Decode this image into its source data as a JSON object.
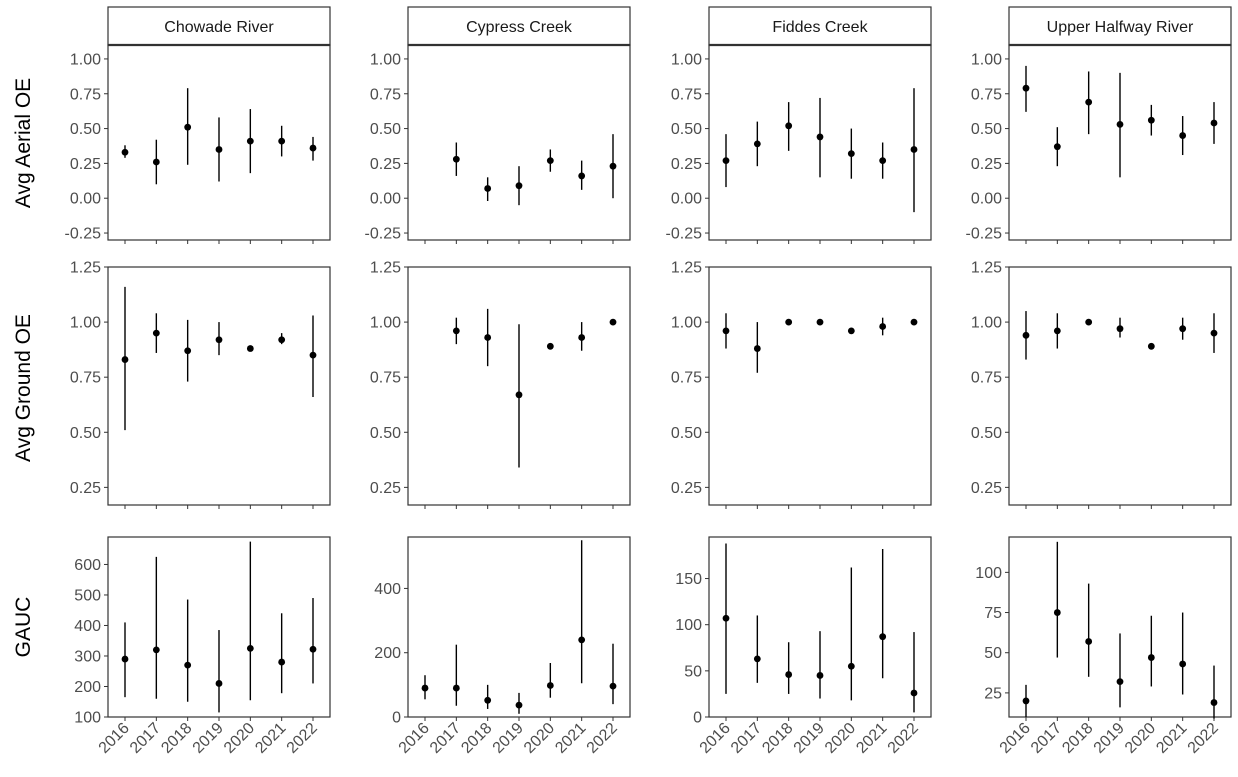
{
  "chart_data": {
    "type": "scatter",
    "facets": [
      "Chowade River",
      "Cypress Creek",
      "Fiddes Creek",
      "Upper Halfway River"
    ],
    "x": [
      "2016",
      "2017",
      "2018",
      "2019",
      "2020",
      "2021",
      "2022"
    ],
    "rows": [
      {
        "label": "Avg Aerial OE",
        "ylim": [
          -0.3,
          1.1
        ],
        "yticks": [
          -0.25,
          0.0,
          0.25,
          0.5,
          0.75,
          1.0
        ],
        "ytick_labels": [
          "-0.25",
          "0.00",
          "0.25",
          "0.50",
          "0.75",
          "1.00"
        ],
        "panels": [
          {
            "facet": "Chowade River",
            "mean": [
              0.33,
              0.26,
              0.51,
              0.35,
              0.41,
              0.41,
              0.36
            ],
            "lower": [
              0.29,
              0.1,
              0.24,
              0.12,
              0.18,
              0.3,
              0.27
            ],
            "upper": [
              0.38,
              0.42,
              0.79,
              0.58,
              0.64,
              0.52,
              0.44
            ]
          },
          {
            "facet": "Cypress Creek",
            "mean": [
              null,
              0.28,
              0.07,
              0.09,
              0.27,
              0.16,
              0.23
            ],
            "lower": [
              null,
              0.16,
              -0.02,
              -0.05,
              0.19,
              0.06,
              0.0
            ],
            "upper": [
              null,
              0.4,
              0.15,
              0.23,
              0.35,
              0.27,
              0.46
            ]
          },
          {
            "facet": "Fiddes Creek",
            "mean": [
              0.27,
              0.39,
              0.52,
              0.44,
              0.32,
              0.27,
              0.35
            ],
            "lower": [
              0.08,
              0.23,
              0.34,
              0.15,
              0.14,
              0.14,
              -0.1
            ],
            "upper": [
              0.46,
              0.55,
              0.69,
              0.72,
              0.5,
              0.4,
              0.79
            ]
          },
          {
            "facet": "Upper Halfway River",
            "mean": [
              0.79,
              0.37,
              0.69,
              0.53,
              0.56,
              0.45,
              0.54
            ],
            "lower": [
              0.62,
              0.23,
              0.46,
              0.15,
              0.45,
              0.31,
              0.39
            ],
            "upper": [
              0.95,
              0.51,
              0.91,
              0.9,
              0.67,
              0.59,
              0.69
            ]
          }
        ]
      },
      {
        "label": "Avg Ground OE",
        "ylim": [
          0.17,
          1.25
        ],
        "yticks": [
          0.25,
          0.5,
          0.75,
          1.0,
          1.25
        ],
        "ytick_labels": [
          "0.25",
          "0.50",
          "0.75",
          "1.00",
          "1.25"
        ],
        "panels": [
          {
            "facet": "Chowade River",
            "mean": [
              0.83,
              0.95,
              0.87,
              0.92,
              0.88,
              0.92,
              0.85
            ],
            "lower": [
              0.51,
              0.86,
              0.73,
              0.85,
              0.88,
              0.9,
              0.66
            ],
            "upper": [
              1.16,
              1.04,
              1.01,
              1.0,
              0.88,
              0.95,
              1.03
            ]
          },
          {
            "facet": "Cypress Creek",
            "mean": [
              null,
              0.96,
              0.93,
              0.67,
              0.89,
              0.93,
              1.0
            ],
            "lower": [
              null,
              0.9,
              0.8,
              0.34,
              0.89,
              0.87,
              1.0
            ],
            "upper": [
              null,
              1.02,
              1.06,
              0.99,
              0.89,
              1.0,
              1.0
            ]
          },
          {
            "facet": "Fiddes Creek",
            "mean": [
              0.96,
              0.88,
              1.0,
              1.0,
              0.96,
              0.98,
              1.0
            ],
            "lower": [
              0.88,
              0.77,
              1.0,
              1.0,
              0.96,
              0.94,
              1.0
            ],
            "upper": [
              1.04,
              1.0,
              1.0,
              1.0,
              0.96,
              1.02,
              1.0
            ]
          },
          {
            "facet": "Upper Halfway River",
            "mean": [
              0.94,
              0.96,
              1.0,
              0.97,
              0.89,
              0.97,
              0.95
            ],
            "lower": [
              0.83,
              0.88,
              1.0,
              0.93,
              0.89,
              0.92,
              0.86
            ],
            "upper": [
              1.05,
              1.04,
              1.0,
              1.02,
              0.89,
              1.02,
              1.04
            ]
          }
        ]
      },
      {
        "label": "GAUC",
        "free_y": true,
        "panels": [
          {
            "facet": "Chowade River",
            "ylim": [
              100,
              690
            ],
            "yticks": [
              100,
              200,
              300,
              400,
              500,
              600
            ],
            "ytick_labels": [
              "100",
              "200",
              "300",
              "400",
              "500",
              "600"
            ],
            "mean": [
              290,
              320,
              270,
              210,
              325,
              280,
              322
            ],
            "lower": [
              165,
              160,
              150,
              115,
              155,
              178,
              210
            ],
            "upper": [
              410,
              625,
              485,
              385,
              675,
              440,
              490
            ]
          },
          {
            "facet": "Cypress Creek",
            "ylim": [
              0,
              560
            ],
            "yticks": [
              0,
              200,
              400
            ],
            "ytick_labels": [
              "0",
              "200",
              "400"
            ],
            "mean": [
              90,
              90,
              52,
              37,
              98,
              240,
              96
            ],
            "lower": [
              55,
              35,
              25,
              10,
              60,
              105,
              40
            ],
            "upper": [
              130,
              225,
              100,
              75,
              168,
              550,
              228
            ]
          },
          {
            "facet": "Fiddes Creek",
            "ylim": [
              0,
              195
            ],
            "yticks": [
              0,
              50,
              100,
              150
            ],
            "ytick_labels": [
              "0",
              "50",
              "100",
              "150"
            ],
            "mean": [
              107,
              63,
              46,
              45,
              55,
              87,
              26
            ],
            "lower": [
              25,
              37,
              25,
              20,
              18,
              42,
              5
            ],
            "upper": [
              188,
              110,
              81,
              93,
              162,
              182,
              92
            ]
          },
          {
            "facet": "Upper Halfway River",
            "ylim": [
              10,
              122
            ],
            "yticks": [
              25,
              50,
              75,
              100
            ],
            "ytick_labels": [
              "25",
              "50",
              "75",
              "100"
            ],
            "mean": [
              20,
              75,
              57,
              32,
              47,
              43,
              19
            ],
            "lower": [
              10,
              47,
              35,
              16,
              29,
              24,
              9
            ],
            "upper": [
              30,
              119,
              93,
              62,
              73,
              75,
              42
            ]
          }
        ]
      }
    ],
    "grid": false,
    "legend": "none"
  }
}
